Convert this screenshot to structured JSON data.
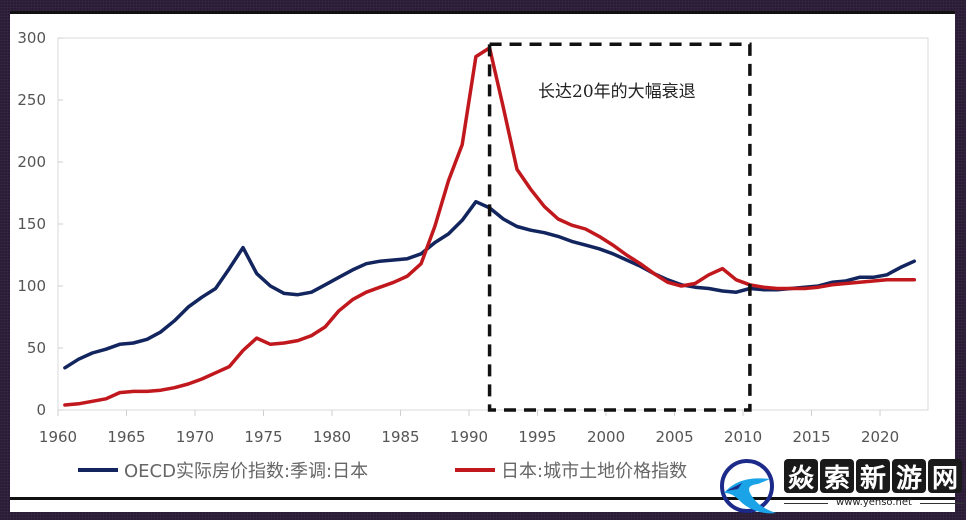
{
  "chart_data": {
    "type": "line",
    "title": "",
    "xlabel": "",
    "ylabel": "",
    "xlim": [
      1960,
      2023
    ],
    "ylim": [
      0,
      300
    ],
    "grid": false,
    "legend_position": "bottom",
    "x_ticks": [
      1960,
      1965,
      1970,
      1975,
      1980,
      1985,
      1990,
      1995,
      2000,
      2005,
      2010,
      2015,
      2020
    ],
    "y_ticks": [
      0,
      50,
      100,
      150,
      200,
      250,
      300
    ],
    "annotation": {
      "text": "长达20年的大幅衰退",
      "box_x": [
        1991.5,
        2010.5
      ],
      "box_y": [
        0,
        295
      ],
      "style": "dashed-box"
    },
    "series": [
      {
        "name": "OECD实际房价指数:季调:日本",
        "color": "#12255e",
        "points": [
          [
            1960.5,
            34
          ],
          [
            1961.5,
            41
          ],
          [
            1962.5,
            46
          ],
          [
            1963.5,
            49
          ],
          [
            1964.5,
            53
          ],
          [
            1965.5,
            54
          ],
          [
            1966.5,
            57
          ],
          [
            1967.5,
            63
          ],
          [
            1968.5,
            72
          ],
          [
            1969.5,
            83
          ],
          [
            1970.5,
            91
          ],
          [
            1971.5,
            98
          ],
          [
            1972.5,
            114
          ],
          [
            1973.5,
            131
          ],
          [
            1974.5,
            110
          ],
          [
            1975.5,
            100
          ],
          [
            1976.5,
            94
          ],
          [
            1977.5,
            93
          ],
          [
            1978.5,
            95
          ],
          [
            1979.5,
            101
          ],
          [
            1980.5,
            107
          ],
          [
            1981.5,
            113
          ],
          [
            1982.5,
            118
          ],
          [
            1983.5,
            120
          ],
          [
            1984.5,
            121
          ],
          [
            1985.5,
            122
          ],
          [
            1986.5,
            126
          ],
          [
            1987.5,
            135
          ],
          [
            1988.5,
            142
          ],
          [
            1989.5,
            153
          ],
          [
            1990.5,
            168
          ],
          [
            1991.5,
            163
          ],
          [
            1992.5,
            154
          ],
          [
            1993.5,
            148
          ],
          [
            1994.5,
            145
          ],
          [
            1995.5,
            143
          ],
          [
            1996.5,
            140
          ],
          [
            1997.5,
            136
          ],
          [
            1998.5,
            133
          ],
          [
            1999.5,
            130
          ],
          [
            2000.5,
            126
          ],
          [
            2001.5,
            121
          ],
          [
            2002.5,
            116
          ],
          [
            2003.5,
            110
          ],
          [
            2004.5,
            105
          ],
          [
            2005.5,
            101
          ],
          [
            2006.5,
            99
          ],
          [
            2007.5,
            98
          ],
          [
            2008.5,
            96
          ],
          [
            2009.5,
            95
          ],
          [
            2010.5,
            98
          ],
          [
            2011.5,
            97
          ],
          [
            2012.5,
            97
          ],
          [
            2013.5,
            98
          ],
          [
            2014.5,
            99
          ],
          [
            2015.5,
            100
          ],
          [
            2016.5,
            103
          ],
          [
            2017.5,
            104
          ],
          [
            2018.5,
            107
          ],
          [
            2019.5,
            107
          ],
          [
            2020.5,
            109
          ],
          [
            2021.5,
            115
          ],
          [
            2022.5,
            120
          ]
        ]
      },
      {
        "name": "日本:城市土地价格指数",
        "color": "#c0181d",
        "points": [
          [
            1960.5,
            4
          ],
          [
            1961.5,
            5
          ],
          [
            1962.5,
            7
          ],
          [
            1963.5,
            9
          ],
          [
            1964.5,
            14
          ],
          [
            1965.5,
            15
          ],
          [
            1966.5,
            15
          ],
          [
            1967.5,
            16
          ],
          [
            1968.5,
            18
          ],
          [
            1969.5,
            21
          ],
          [
            1970.5,
            25
          ],
          [
            1971.5,
            30
          ],
          [
            1972.5,
            35
          ],
          [
            1973.5,
            48
          ],
          [
            1974.5,
            58
          ],
          [
            1975.5,
            53
          ],
          [
            1976.5,
            54
          ],
          [
            1977.5,
            56
          ],
          [
            1978.5,
            60
          ],
          [
            1979.5,
            67
          ],
          [
            1980.5,
            80
          ],
          [
            1981.5,
            89
          ],
          [
            1982.5,
            95
          ],
          [
            1983.5,
            99
          ],
          [
            1984.5,
            103
          ],
          [
            1985.5,
            108
          ],
          [
            1986.5,
            118
          ],
          [
            1987.5,
            148
          ],
          [
            1988.5,
            185
          ],
          [
            1989.5,
            214
          ],
          [
            1990.5,
            285
          ],
          [
            1991.5,
            292
          ],
          [
            1992.5,
            244
          ],
          [
            1993.5,
            194
          ],
          [
            1994.5,
            178
          ],
          [
            1995.5,
            164
          ],
          [
            1996.5,
            154
          ],
          [
            1997.5,
            149
          ],
          [
            1998.5,
            146
          ],
          [
            1999.5,
            140
          ],
          [
            2000.5,
            133
          ],
          [
            2001.5,
            125
          ],
          [
            2002.5,
            118
          ],
          [
            2003.5,
            110
          ],
          [
            2004.5,
            103
          ],
          [
            2005.5,
            100
          ],
          [
            2006.5,
            102
          ],
          [
            2007.5,
            109
          ],
          [
            2008.5,
            114
          ],
          [
            2009.5,
            105
          ],
          [
            2010.5,
            101
          ],
          [
            2011.5,
            99
          ],
          [
            2012.5,
            98
          ],
          [
            2013.5,
            98
          ],
          [
            2014.5,
            98
          ],
          [
            2015.5,
            99
          ],
          [
            2016.5,
            101
          ],
          [
            2017.5,
            102
          ],
          [
            2018.5,
            103
          ],
          [
            2019.5,
            104
          ],
          [
            2020.5,
            105
          ],
          [
            2021.5,
            105
          ],
          [
            2022.5,
            105
          ]
        ]
      }
    ]
  },
  "legend": [
    {
      "label": "OECD实际房价指数:季调:日本",
      "color": "#12255e"
    },
    {
      "label": "日本:城市土地价格指数",
      "color": "#c0181d"
    }
  ],
  "watermark": {
    "title_chars": [
      "焱",
      "索",
      "新",
      "游",
      "网"
    ],
    "url": "www.yenso.net"
  }
}
